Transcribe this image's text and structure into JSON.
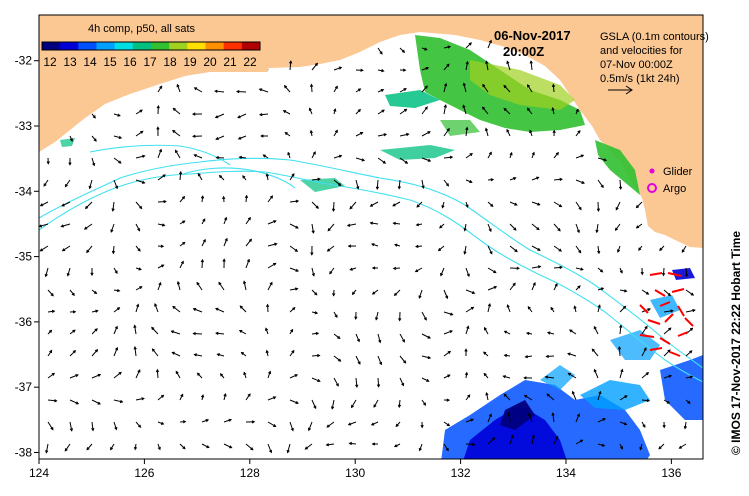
{
  "map": {
    "colorbar": {
      "title": "4h comp, p50, all sats",
      "tick_labels": [
        "12",
        "13",
        "14",
        "15",
        "16",
        "17",
        "18",
        "19",
        "20",
        "21",
        "22"
      ],
      "colors": [
        "#000080",
        "#0000d8",
        "#0050ff",
        "#00a0ff",
        "#00e0e0",
        "#00c080",
        "#30c030",
        "#a0d020",
        "#ffe000",
        "#ff9000",
        "#ff3000",
        "#b00000"
      ]
    },
    "date": "06-Nov-2017",
    "time": "20:00Z",
    "info_lines": [
      "GSLA (0.1m contours)",
      "and velocities for",
      "07-Nov 00:00Z",
      "0.5m/s (1kt 24h)"
    ],
    "legend": {
      "glider_label": "Glider",
      "argo_label": "Argo",
      "glider_color": "#e000e0",
      "argo_color": "#e000e0"
    },
    "credit": "© IMOS 17-Nov-2017 22:22 Hobart Time",
    "x_axis": {
      "ticks": [
        "124",
        "126",
        "128",
        "130",
        "132",
        "134",
        "136"
      ],
      "range": [
        124,
        136.6
      ]
    },
    "y_axis": {
      "ticks": [
        "-32",
        "-33",
        "-34",
        "-35",
        "-36",
        "-37",
        "-38"
      ],
      "range": [
        -38.1,
        -31.3
      ]
    },
    "colors": {
      "land": "#fbc894",
      "ocean": "#ffffff",
      "contour": "#40e0f0",
      "arrow": "#000000",
      "glider_track": "#ff0000"
    }
  }
}
